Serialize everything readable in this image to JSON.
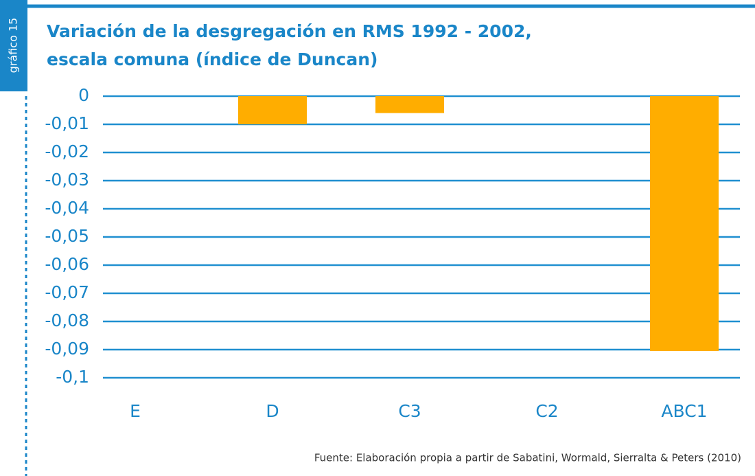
{
  "chart_data": {
    "type": "bar",
    "side_label": "gráfico 15",
    "title": [
      "Variación de la desgregación en RMS 1992 - 2002,",
      "escala comuna (índice de Duncan)"
    ],
    "categories": [
      "E",
      "D",
      "C3",
      "C2",
      "ABC1"
    ],
    "values": [
      0,
      -0.01,
      -0.006,
      0,
      -0.0905
    ],
    "color": "#ffad00",
    "ylim": [
      -0.1,
      0
    ],
    "yticks": [
      0,
      {
        "value": -0.01,
        "label": "-0,01"
      },
      {
        "value": -0.02,
        "label": "-0,02"
      },
      {
        "value": -0.03,
        "label": "-0,03"
      },
      {
        "value": -0.04,
        "label": "-0,04"
      },
      {
        "value": -0.05,
        "label": "-0,05"
      },
      {
        "value": -0.06,
        "label": "-0,06"
      },
      {
        "value": -0.07,
        "label": "-0,07"
      },
      {
        "value": -0.08,
        "label": "-0,08"
      },
      {
        "value": -0.09,
        "label": "-0,09"
      },
      {
        "value": -0.1,
        "label": "-0,1"
      }
    ],
    "grid": true,
    "source": "Fuente: Elaboración propia a partir de Sabatini, Wormald, Sierralta & Peters (2010)"
  }
}
